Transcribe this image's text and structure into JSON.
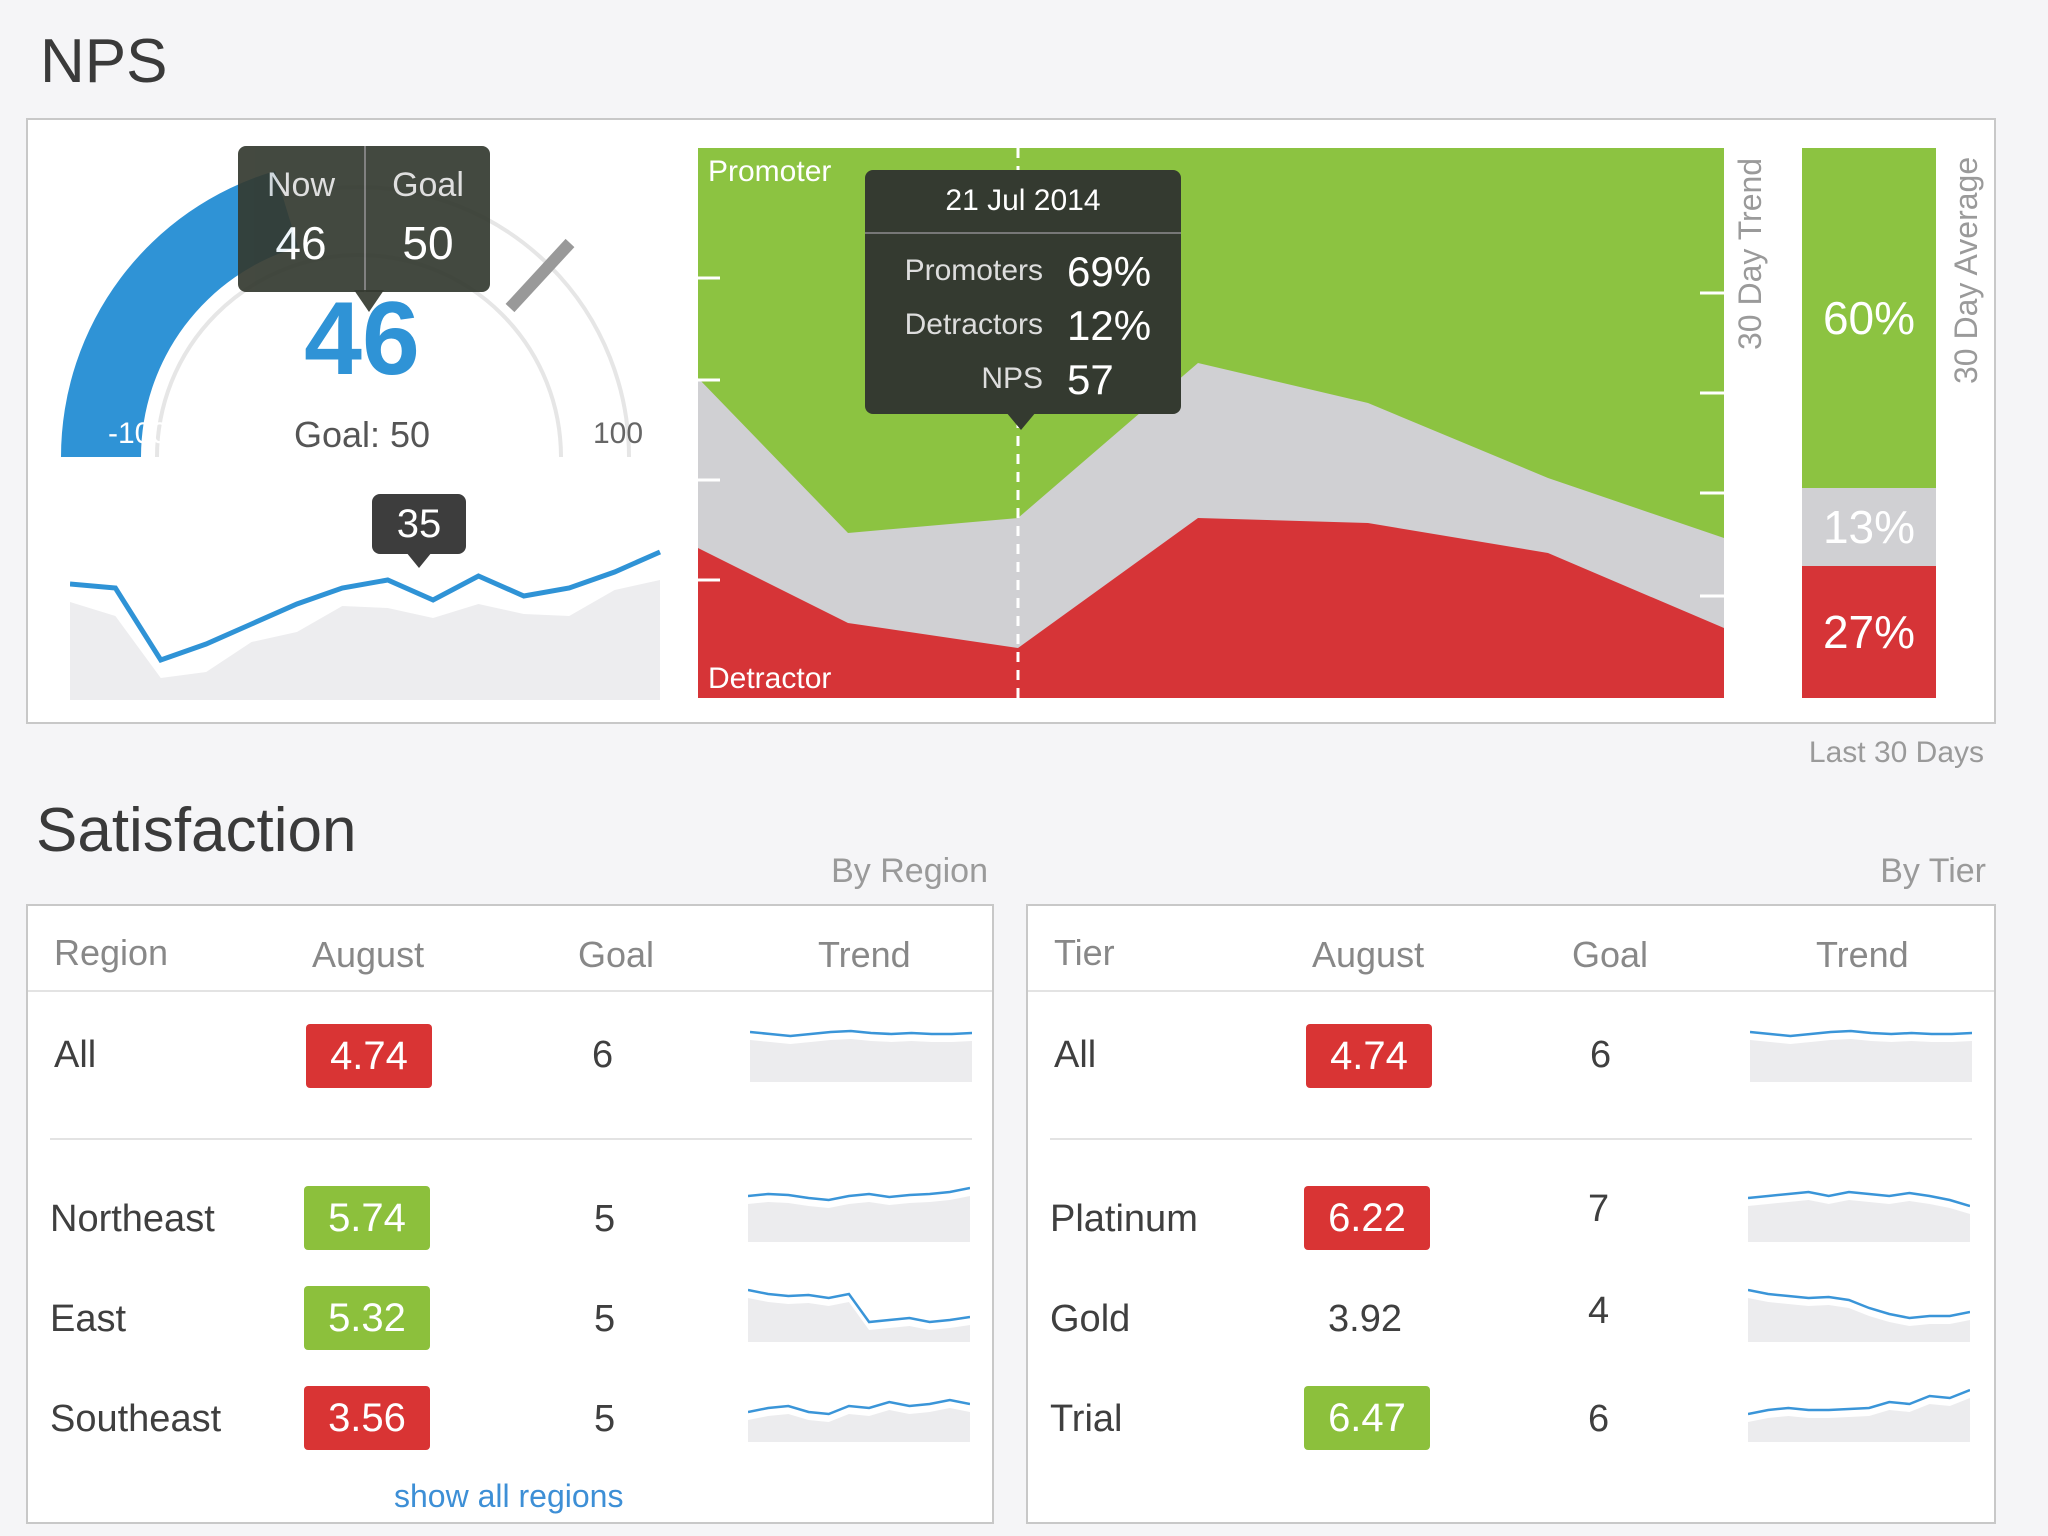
{
  "nps": {
    "title": "NPS",
    "gauge": {
      "now_label": "Now",
      "now_value": "46",
      "goal_label": "Goal",
      "goal_value": "50",
      "big_value": "46",
      "goal_text": "Goal: 50",
      "min": "-100",
      "max": "100",
      "current": 46,
      "goal": 50
    },
    "mini_trend": {
      "callout": "35",
      "values": [
        44,
        43,
        25,
        29,
        34,
        39,
        43,
        45,
        40,
        46,
        41,
        43,
        47,
        52
      ]
    },
    "area": {
      "promoter_label": "Promoter",
      "detractor_label": "Detractor",
      "trend_axis_label": "30 Day Trend",
      "tooltip": {
        "date": "21 Jul 2014",
        "rows": [
          {
            "label": "Promoters",
            "value": "69%"
          },
          {
            "label": "Detractors",
            "value": "12%"
          },
          {
            "label": "NPS",
            "value": "57"
          }
        ]
      }
    },
    "average": {
      "axis_label": "30 Day Average",
      "promoter": "60%",
      "passive": "13%",
      "detractor": "27%",
      "footer": "Last 30 Days"
    },
    "colors": {
      "promoter": "#8cc341",
      "passive": "#d0d0d3",
      "detractor": "#d63437",
      "accent": "#2f93d6"
    }
  },
  "satisfaction": {
    "title": "Satisfaction",
    "by_region": {
      "caption": "By Region",
      "headers": {
        "name": "Region",
        "month": "August",
        "goal": "Goal",
        "trend": "Trend"
      },
      "total": {
        "name": "All",
        "value": "4.74",
        "goal": "6",
        "status": "red"
      },
      "rows": [
        {
          "name": "Northeast",
          "value": "5.74",
          "goal": "5",
          "status": "green"
        },
        {
          "name": "East",
          "value": "5.32",
          "goal": "5",
          "status": "green"
        },
        {
          "name": "Southeast",
          "value": "3.56",
          "goal": "5",
          "status": "red"
        }
      ],
      "link": "show all regions"
    },
    "by_tier": {
      "caption": "By Tier",
      "headers": {
        "name": "Tier",
        "month": "August",
        "goal": "Goal",
        "trend": "Trend"
      },
      "total": {
        "name": "All",
        "value": "4.74",
        "goal": "6",
        "status": "red"
      },
      "rows": [
        {
          "name": "Platinum",
          "value": "6.22",
          "goal": "7",
          "status": "red"
        },
        {
          "name": "Gold",
          "value": "3.92",
          "goal": "4",
          "status": "none"
        },
        {
          "name": "Trial",
          "value": "6.47",
          "goal": "6",
          "status": "green"
        }
      ]
    }
  }
}
